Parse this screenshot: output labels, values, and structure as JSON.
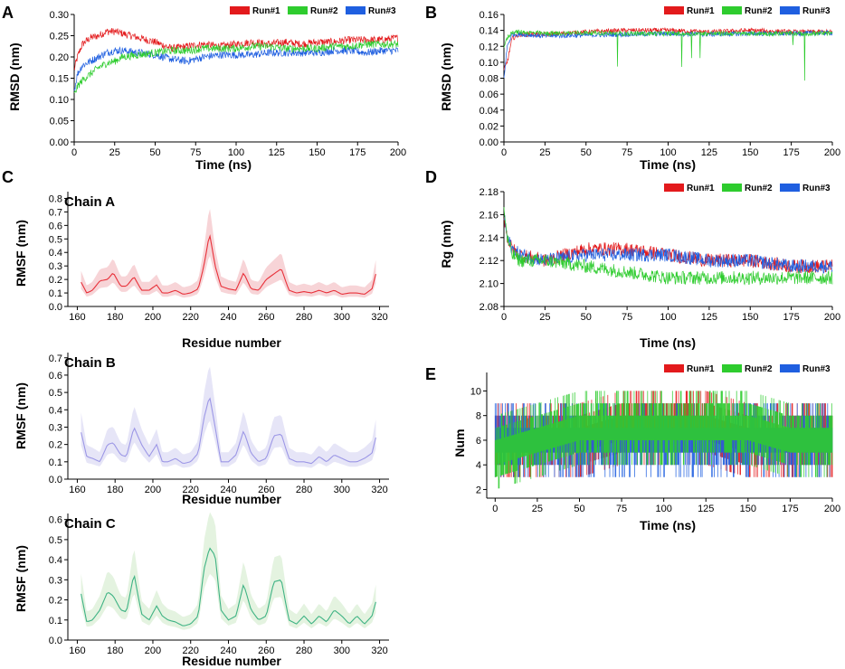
{
  "colors": {
    "run1": "#e31a1c",
    "run2": "#2ecc2e",
    "run3": "#1f5fe0",
    "chainA": "#e8313a",
    "chainAband": "#f6cdd0",
    "chainB": "#9c97e6",
    "chainBband": "#e2e1f6",
    "chainC": "#3fb384",
    "chainCband": "#dff1da"
  },
  "chart_data": [
    {
      "panel": "A",
      "type": "line",
      "xlabel": "Time (ns)",
      "ylabel": "RMSD (nm)",
      "xlim": [
        0,
        200
      ],
      "ylim": [
        0,
        0.3
      ],
      "xticks": [
        "0",
        "25",
        "50",
        "75",
        "100",
        "125",
        "150",
        "175",
        "200"
      ],
      "yticks": [
        "0.00",
        "0.05",
        "0.10",
        "0.15",
        "0.20",
        "0.25",
        "0.30"
      ],
      "legend": [
        "Run#1",
        "Run#2",
        "Run#3"
      ],
      "series": [
        {
          "name": "Run#1",
          "x": [
            0,
            2,
            5,
            10,
            15,
            20,
            25,
            30,
            40,
            50,
            60,
            70,
            80,
            90,
            100,
            110,
            120,
            130,
            140,
            150,
            160,
            170,
            180,
            190,
            200
          ],
          "y": [
            0.17,
            0.2,
            0.23,
            0.245,
            0.25,
            0.26,
            0.26,
            0.255,
            0.245,
            0.235,
            0.22,
            0.225,
            0.23,
            0.225,
            0.23,
            0.235,
            0.23,
            0.235,
            0.23,
            0.235,
            0.235,
            0.24,
            0.24,
            0.24,
            0.245
          ]
        },
        {
          "name": "Run#2",
          "x": [
            0,
            2,
            5,
            10,
            15,
            20,
            25,
            30,
            40,
            50,
            60,
            70,
            80,
            90,
            100,
            110,
            120,
            130,
            140,
            150,
            160,
            170,
            180,
            190,
            200
          ],
          "y": [
            0.11,
            0.13,
            0.145,
            0.16,
            0.175,
            0.185,
            0.19,
            0.2,
            0.205,
            0.21,
            0.215,
            0.215,
            0.22,
            0.22,
            0.22,
            0.225,
            0.225,
            0.22,
            0.22,
            0.22,
            0.225,
            0.225,
            0.23,
            0.23,
            0.23
          ]
        },
        {
          "name": "Run#3",
          "x": [
            0,
            2,
            5,
            10,
            15,
            20,
            25,
            30,
            40,
            50,
            60,
            70,
            80,
            90,
            100,
            110,
            120,
            130,
            140,
            150,
            160,
            170,
            180,
            190,
            200
          ],
          "y": [
            0.12,
            0.16,
            0.18,
            0.19,
            0.2,
            0.21,
            0.215,
            0.215,
            0.21,
            0.205,
            0.195,
            0.19,
            0.2,
            0.205,
            0.205,
            0.205,
            0.21,
            0.21,
            0.21,
            0.21,
            0.215,
            0.215,
            0.21,
            0.215,
            0.215
          ]
        }
      ]
    },
    {
      "panel": "B",
      "type": "line",
      "xlabel": "Time (ns)",
      "ylabel": "RMSD (nm)",
      "xlim": [
        0,
        200
      ],
      "ylim": [
        0,
        0.16
      ],
      "xticks": [
        "0",
        "25",
        "50",
        "75",
        "100",
        "125",
        "150",
        "175",
        "200"
      ],
      "yticks": [
        "0.00",
        "0.02",
        "0.04",
        "0.06",
        "0.08",
        "0.10",
        "0.12",
        "0.14",
        "0.16"
      ],
      "legend": [
        "Run#1",
        "Run#2",
        "Run#3"
      ],
      "series": [
        {
          "name": "Run#1",
          "x": [
            0,
            2,
            5,
            10,
            25,
            50,
            75,
            100,
            125,
            150,
            175,
            200
          ],
          "y": [
            0.09,
            0.1,
            0.13,
            0.135,
            0.135,
            0.138,
            0.14,
            0.14,
            0.138,
            0.14,
            0.138,
            0.138
          ]
        },
        {
          "name": "Run#2",
          "x": [
            0,
            2,
            5,
            10,
            25,
            50,
            75,
            100,
            125,
            150,
            175,
            200
          ],
          "y": [
            0.12,
            0.13,
            0.138,
            0.138,
            0.136,
            0.137,
            0.136,
            0.136,
            0.136,
            0.136,
            0.136,
            0.136
          ]
        },
        {
          "name": "Run#3",
          "x": [
            0,
            2,
            5,
            10,
            25,
            50,
            75,
            100,
            125,
            150,
            175,
            200
          ],
          "y": [
            0.08,
            0.12,
            0.135,
            0.135,
            0.133,
            0.134,
            0.135,
            0.136,
            0.135,
            0.136,
            0.136,
            0.137
          ]
        }
      ]
    },
    {
      "panel": "C",
      "type": "line",
      "subtitle": "Chain A",
      "xlabel": "Residue number",
      "ylabel": "RMSF (nm)",
      "xlim": [
        155,
        325
      ],
      "ylim": [
        0,
        0.85
      ],
      "xticks": [
        "160",
        "180",
        "200",
        "220",
        "240",
        "260",
        "280",
        "300",
        "320"
      ],
      "yticks": [
        "0.0",
        "0.1",
        "0.2",
        "0.3",
        "0.4",
        "0.5",
        "0.6",
        "0.7",
        "0.8"
      ],
      "series": [
        {
          "name": "Chain A",
          "x": [
            162,
            165,
            168,
            172,
            176,
            179,
            183,
            186,
            190,
            194,
            198,
            202,
            205,
            208,
            212,
            216,
            220,
            224,
            227,
            230,
            233,
            236,
            240,
            244,
            248,
            252,
            256,
            260,
            264,
            268,
            272,
            276,
            280,
            284,
            288,
            292,
            296,
            300,
            304,
            308,
            312,
            316,
            318
          ],
          "y": [
            0.18,
            0.1,
            0.12,
            0.19,
            0.2,
            0.25,
            0.15,
            0.15,
            0.22,
            0.12,
            0.12,
            0.16,
            0.1,
            0.1,
            0.12,
            0.09,
            0.1,
            0.13,
            0.3,
            0.54,
            0.3,
            0.15,
            0.13,
            0.12,
            0.25,
            0.13,
            0.12,
            0.2,
            0.24,
            0.28,
            0.12,
            0.1,
            0.11,
            0.1,
            0.12,
            0.1,
            0.12,
            0.09,
            0.1,
            0.1,
            0.09,
            0.13,
            0.24
          ]
        }
      ]
    },
    {
      "panel": "C",
      "type": "line",
      "subtitle": "Chain B",
      "xlabel": "Residue number",
      "ylabel": "RMSF (nm)",
      "xlim": [
        155,
        325
      ],
      "ylim": [
        0,
        0.73
      ],
      "xticks": [
        "160",
        "180",
        "200",
        "220",
        "240",
        "260",
        "280",
        "300",
        "320"
      ],
      "yticks": [
        "0.0",
        "0.1",
        "0.2",
        "0.3",
        "0.4",
        "0.5",
        "0.6",
        "0.7"
      ],
      "series": [
        {
          "name": "Chain B",
          "x": [
            162,
            165,
            168,
            172,
            176,
            179,
            183,
            186,
            190,
            194,
            198,
            202,
            205,
            208,
            212,
            216,
            220,
            224,
            227,
            230,
            233,
            236,
            240,
            244,
            248,
            252,
            256,
            260,
            264,
            268,
            272,
            276,
            280,
            284,
            288,
            292,
            296,
            300,
            304,
            308,
            312,
            316,
            318
          ],
          "y": [
            0.27,
            0.13,
            0.12,
            0.1,
            0.2,
            0.21,
            0.14,
            0.13,
            0.3,
            0.2,
            0.13,
            0.2,
            0.1,
            0.1,
            0.12,
            0.09,
            0.1,
            0.15,
            0.35,
            0.48,
            0.3,
            0.1,
            0.1,
            0.14,
            0.28,
            0.15,
            0.1,
            0.12,
            0.25,
            0.26,
            0.12,
            0.1,
            0.1,
            0.09,
            0.13,
            0.1,
            0.14,
            0.12,
            0.1,
            0.1,
            0.12,
            0.15,
            0.24
          ]
        }
      ]
    },
    {
      "panel": "C",
      "type": "line",
      "subtitle": "Chain C",
      "xlabel": "Residue number",
      "ylabel": "RMSF (nm)",
      "xlim": [
        155,
        325
      ],
      "ylim": [
        0,
        0.63
      ],
      "xticks": [
        "160",
        "180",
        "200",
        "220",
        "240",
        "260",
        "280",
        "300",
        "320"
      ],
      "yticks": [
        "0.0",
        "0.1",
        "0.2",
        "0.3",
        "0.4",
        "0.5",
        "0.6"
      ],
      "series": [
        {
          "name": "Chain C",
          "x": [
            162,
            165,
            168,
            172,
            176,
            179,
            183,
            186,
            190,
            194,
            198,
            202,
            205,
            208,
            212,
            216,
            220,
            224,
            227,
            230,
            233,
            236,
            240,
            244,
            248,
            252,
            256,
            260,
            264,
            268,
            272,
            276,
            280,
            284,
            288,
            292,
            296,
            300,
            304,
            308,
            312,
            316,
            318
          ],
          "y": [
            0.23,
            0.09,
            0.1,
            0.15,
            0.24,
            0.22,
            0.15,
            0.14,
            0.33,
            0.13,
            0.1,
            0.17,
            0.12,
            0.1,
            0.09,
            0.07,
            0.08,
            0.12,
            0.35,
            0.46,
            0.42,
            0.15,
            0.1,
            0.12,
            0.28,
            0.15,
            0.1,
            0.12,
            0.29,
            0.3,
            0.1,
            0.08,
            0.12,
            0.08,
            0.12,
            0.09,
            0.15,
            0.12,
            0.08,
            0.12,
            0.08,
            0.12,
            0.19
          ]
        }
      ]
    },
    {
      "panel": "D",
      "type": "line",
      "xlabel": "Time (ns)",
      "ylabel": "Rg (nm)",
      "xlim": [
        0,
        200
      ],
      "ylim": [
        2.08,
        2.18
      ],
      "xticks": [
        "0",
        "25",
        "50",
        "75",
        "100",
        "125",
        "150",
        "175",
        "200"
      ],
      "yticks": [
        "2.08",
        "2.10",
        "2.12",
        "2.14",
        "2.16",
        "2.18"
      ],
      "legend": [
        "Run#1",
        "Run#2",
        "Run#3"
      ],
      "series": [
        {
          "name": "Run#1",
          "x": [
            0,
            2,
            5,
            10,
            25,
            50,
            75,
            100,
            125,
            150,
            175,
            200
          ],
          "y": [
            2.16,
            2.14,
            2.13,
            2.125,
            2.12,
            2.13,
            2.13,
            2.125,
            2.12,
            2.12,
            2.115,
            2.115
          ]
        },
        {
          "name": "Run#2",
          "x": [
            0,
            2,
            5,
            10,
            25,
            50,
            75,
            100,
            125,
            150,
            175,
            200
          ],
          "y": [
            2.165,
            2.14,
            2.125,
            2.12,
            2.12,
            2.115,
            2.11,
            2.105,
            2.105,
            2.105,
            2.105,
            2.105
          ]
        },
        {
          "name": "Run#3",
          "x": [
            0,
            2,
            5,
            10,
            25,
            50,
            75,
            100,
            125,
            150,
            175,
            200
          ],
          "y": [
            2.16,
            2.14,
            2.13,
            2.125,
            2.12,
            2.125,
            2.125,
            2.125,
            2.12,
            2.12,
            2.115,
            2.115
          ]
        }
      ]
    },
    {
      "panel": "E",
      "type": "line",
      "xlabel": "Time (ns)",
      "ylabel": "Num",
      "xlim": [
        -5,
        200
      ],
      "ylim": [
        1.3,
        11.5
      ],
      "xticks": [
        "0",
        "25",
        "50",
        "75",
        "100",
        "125",
        "150",
        "175",
        "200"
      ],
      "yticks": [
        "2",
        "4",
        "6",
        "8",
        "10"
      ],
      "legend": [
        "Run#1",
        "Run#2",
        "Run#3"
      ],
      "series": [
        {
          "name": "Run#1",
          "x": [
            0,
            25,
            50,
            75,
            100,
            125,
            150,
            175,
            200
          ],
          "y": [
            6,
            6,
            6,
            7,
            7,
            7,
            6,
            6,
            6
          ]
        },
        {
          "name": "Run#2",
          "x": [
            0,
            25,
            50,
            75,
            100,
            125,
            150,
            175,
            200
          ],
          "y": [
            5,
            6,
            7,
            7,
            7,
            7,
            7,
            6,
            6
          ]
        },
        {
          "name": "Run#3",
          "x": [
            0,
            25,
            50,
            75,
            100,
            125,
            150,
            175,
            200
          ],
          "y": [
            6,
            6,
            6,
            6,
            6,
            6,
            6,
            6,
            6
          ]
        }
      ]
    }
  ],
  "panel_labels": [
    "A",
    "B",
    "C",
    "D",
    "E"
  ]
}
